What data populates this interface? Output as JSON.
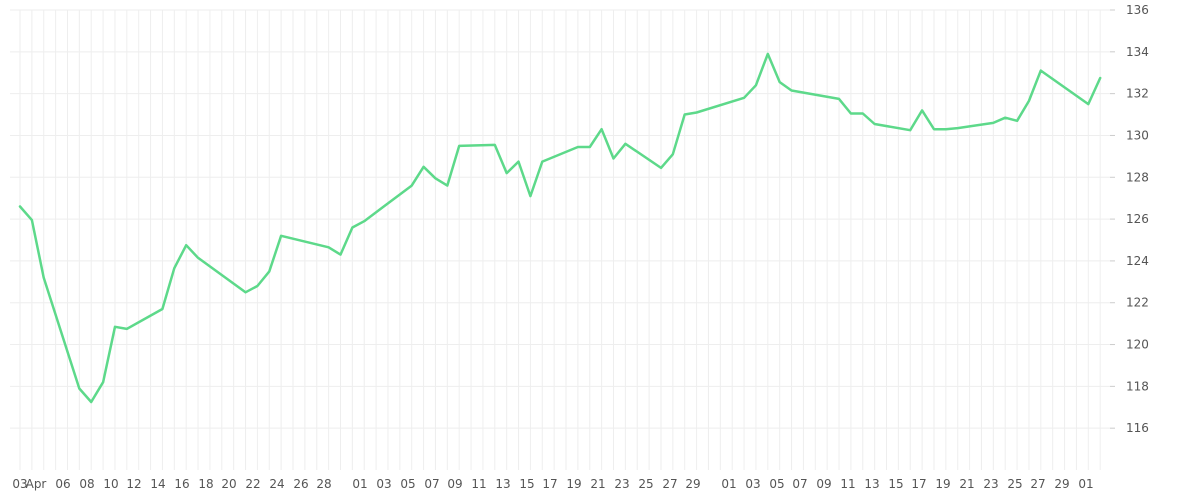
{
  "chart_data": {
    "type": "line",
    "title": "",
    "xlabel": "",
    "ylabel": "",
    "ylim": [
      114,
      136
    ],
    "y_ticks": [
      116,
      118,
      120,
      122,
      124,
      126,
      128,
      130,
      132,
      134,
      136
    ],
    "y_axis_position": "right",
    "grid": true,
    "line_color": "#5dd98a",
    "grid_color": "#eeeeee",
    "x_tick_labels": [
      "03",
      "Apr",
      "06",
      "08",
      "10",
      "12",
      "14",
      "16",
      "18",
      "20",
      "22",
      "24",
      "26",
      "28",
      "01",
      "03",
      "05",
      "07",
      "09",
      "11",
      "13",
      "15",
      "17",
      "19",
      "21",
      "23",
      "25",
      "27",
      "29",
      "01",
      "03",
      "05",
      "07",
      "09",
      "11",
      "13",
      "15",
      "17",
      "19",
      "21",
      "23",
      "25",
      "27",
      "29",
      "01"
    ],
    "series": [
      {
        "x": [
          "2021-03-03",
          "2021-03-04",
          "2021-03-05",
          "2021-03-08",
          "2021-03-09",
          "2021-03-10",
          "2021-03-11",
          "2021-03-12",
          "2021-03-15",
          "2021-03-16",
          "2021-03-17",
          "2021-03-18",
          "2021-03-22",
          "2021-03-23",
          "2021-03-24",
          "2021-03-25",
          "2021-03-29",
          "2021-03-30",
          "2021-03-31",
          "2021-04-01",
          "2021-04-05",
          "2021-04-06",
          "2021-04-07",
          "2021-04-08",
          "2021-04-09",
          "2021-04-12",
          "2021-04-13",
          "2021-04-14",
          "2021-04-15",
          "2021-04-16",
          "2021-04-19",
          "2021-04-20",
          "2021-04-21",
          "2021-04-22",
          "2021-04-23",
          "2021-04-26",
          "2021-04-27",
          "2021-04-28",
          "2021-04-29",
          "2021-05-03",
          "2021-05-04",
          "2021-05-05",
          "2021-05-06",
          "2021-05-07",
          "2021-05-11",
          "2021-05-12",
          "2021-05-13",
          "2021-05-14",
          "2021-05-17",
          "2021-05-18",
          "2021-05-19",
          "2021-05-20",
          "2021-05-21",
          "2021-05-24",
          "2021-05-25",
          "2021-05-26",
          "2021-05-27",
          "2021-05-28",
          "2021-06-01",
          "2021-06-02"
        ],
        "values": [
          126.6,
          125.95,
          123.2,
          117.9,
          117.25,
          118.2,
          120.85,
          120.75,
          121.7,
          123.65,
          124.75,
          124.15,
          122.5,
          122.8,
          123.5,
          125.2,
          124.65,
          124.3,
          125.6,
          125.9,
          127.6,
          128.5,
          127.95,
          127.6,
          129.5,
          129.55,
          128.2,
          128.75,
          127.1,
          128.75,
          129.45,
          129.45,
          130.3,
          128.9,
          129.6,
          128.45,
          129.1,
          131.0,
          131.1,
          131.8,
          132.4,
          133.9,
          132.55,
          132.15,
          131.75,
          131.05,
          131.05,
          130.55,
          130.25,
          131.2,
          130.3,
          130.3,
          130.35,
          130.6,
          130.85,
          130.7,
          131.65,
          133.1,
          131.5,
          132.75
        ]
      }
    ]
  }
}
